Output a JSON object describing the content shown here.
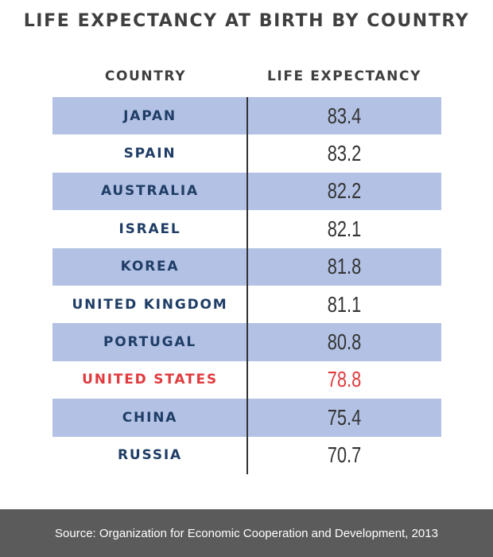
{
  "title": "LIFE EXPECTANCY AT BIRTH BY COUNTRY",
  "column_headers": {
    "country": "COUNTRY",
    "life_expectancy": "LIFE EXPECTANCY"
  },
  "source": "Source: Organization for Economic Cooperation and Development, 2013",
  "colors": {
    "row_shade": "#b3c2e4",
    "country_text": "#1f3d66",
    "highlight": "#e03a3e",
    "footer_bg": "#5b5b5b"
  },
  "chart_data": {
    "type": "table",
    "title": "LIFE EXPECTANCY AT BIRTH BY COUNTRY",
    "columns": [
      "COUNTRY",
      "LIFE EXPECTANCY"
    ],
    "rows": [
      {
        "country": "JAPAN",
        "value": "83.4"
      },
      {
        "country": "SPAIN",
        "value": "83.2"
      },
      {
        "country": "AUSTRALIA",
        "value": "82.2"
      },
      {
        "country": "ISRAEL",
        "value": "82.1"
      },
      {
        "country": "KOREA",
        "value": "81.8"
      },
      {
        "country": "UNITED KINGDOM",
        "value": "81.1"
      },
      {
        "country": "PORTUGAL",
        "value": "80.8"
      },
      {
        "country": "UNITED STATES",
        "value": "78.8",
        "highlight": true
      },
      {
        "country": "CHINA",
        "value": "75.4"
      },
      {
        "country": "RUSSIA",
        "value": "70.7"
      }
    ]
  }
}
